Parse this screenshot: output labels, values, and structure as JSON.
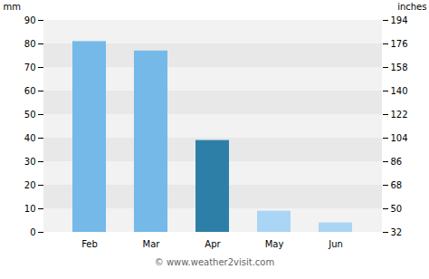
{
  "chart_data": {
    "type": "bar",
    "categories": [
      "Feb",
      "Mar",
      "Apr",
      "May",
      "Jun"
    ],
    "values": [
      81,
      77,
      39,
      9,
      4
    ],
    "colors": [
      "#74b9e8",
      "#74b9e8",
      "#2d7fa8",
      "#aad5f5",
      "#aad5f5"
    ],
    "ylabel": "mm",
    "y2label": "inches",
    "ylim": [
      0,
      90
    ],
    "yticks": [
      0,
      10,
      20,
      30,
      40,
      50,
      60,
      70,
      80,
      90
    ],
    "y2lim": [
      32,
      194
    ],
    "y2ticks": [
      32,
      50,
      68,
      86,
      104,
      122,
      140,
      158,
      176,
      194
    ],
    "grid": true,
    "caption": "© www.weather2visit.com"
  }
}
